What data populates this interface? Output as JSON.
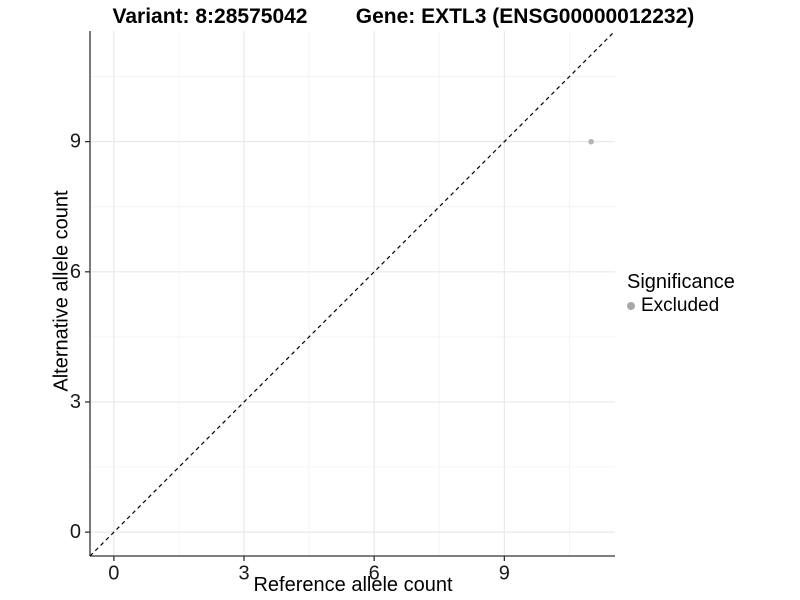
{
  "chart_data": {
    "type": "scatter",
    "title_left": "Variant: 8:28575042",
    "title_right": "Gene: EXTL3 (ENSG00000012232)",
    "xlabel": "Reference allele count",
    "ylabel": "Alternative allele count",
    "xlim": [
      -0.55,
      11.55
    ],
    "ylim": [
      -0.55,
      11.55
    ],
    "xticks": [
      0,
      3,
      6,
      9
    ],
    "yticks": [
      0,
      3,
      6,
      9
    ],
    "minor_ticks": [
      1.5,
      4.5,
      7.5,
      10.5
    ],
    "grid": true,
    "reference_line": {
      "type": "identity",
      "style": "dashed",
      "color": "#000000"
    },
    "series": [
      {
        "name": "Excluded",
        "color": "#b5b5b5",
        "points": [
          {
            "x": 11,
            "y": 9
          }
        ]
      }
    ],
    "legend": {
      "title": "Significance",
      "position": "right",
      "items": [
        {
          "label": "Excluded",
          "color": "#a8a8a8"
        }
      ]
    },
    "colors": {
      "background": "#ffffff",
      "grid_major": "#e9e9e9",
      "grid_minor": "#f4f4f4",
      "axis_line": "#333333",
      "tick_mark": "#333333",
      "tick_label": "#1a1a1a"
    }
  }
}
